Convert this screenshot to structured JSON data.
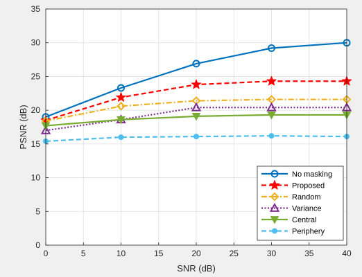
{
  "chart_data": {
    "type": "line",
    "title": "",
    "xlabel": "SNR (dB)",
    "ylabel": "PSNR (dB)",
    "xlim": [
      0,
      40
    ],
    "ylim": [
      0,
      35
    ],
    "xticks": [
      0,
      5,
      10,
      15,
      20,
      25,
      30,
      35,
      40
    ],
    "yticks": [
      0,
      5,
      10,
      15,
      20,
      25,
      30,
      35
    ],
    "grid": true,
    "legend_position": "bottom-right",
    "x": [
      0,
      10,
      20,
      30,
      40
    ],
    "series": [
      {
        "name": "No masking",
        "values": [
          19.0,
          23.3,
          26.9,
          29.2,
          30.0
        ],
        "color": "#0072BD",
        "line": "solid",
        "marker": "circle"
      },
      {
        "name": "Proposed",
        "values": [
          18.5,
          21.9,
          23.8,
          24.3,
          24.3
        ],
        "color": "#FF0000",
        "line": "dashed",
        "marker": "star"
      },
      {
        "name": "Random",
        "values": [
          18.4,
          20.6,
          21.4,
          21.6,
          21.6
        ],
        "color": "#EDB120",
        "line": "dashdot",
        "marker": "diamond"
      },
      {
        "name": "Variance",
        "values": [
          17.0,
          18.6,
          20.4,
          20.4,
          20.4
        ],
        "color": "#7E2F8E",
        "line": "dotted",
        "marker": "triangle-up"
      },
      {
        "name": "Central",
        "values": [
          17.7,
          18.6,
          19.1,
          19.3,
          19.3
        ],
        "color": "#77AC30",
        "line": "solid",
        "marker": "triangle-down"
      },
      {
        "name": "Periphery",
        "values": [
          15.4,
          16.0,
          16.1,
          16.2,
          16.1
        ],
        "color": "#4DBEEE",
        "line": "dashed",
        "marker": "dot"
      }
    ]
  }
}
